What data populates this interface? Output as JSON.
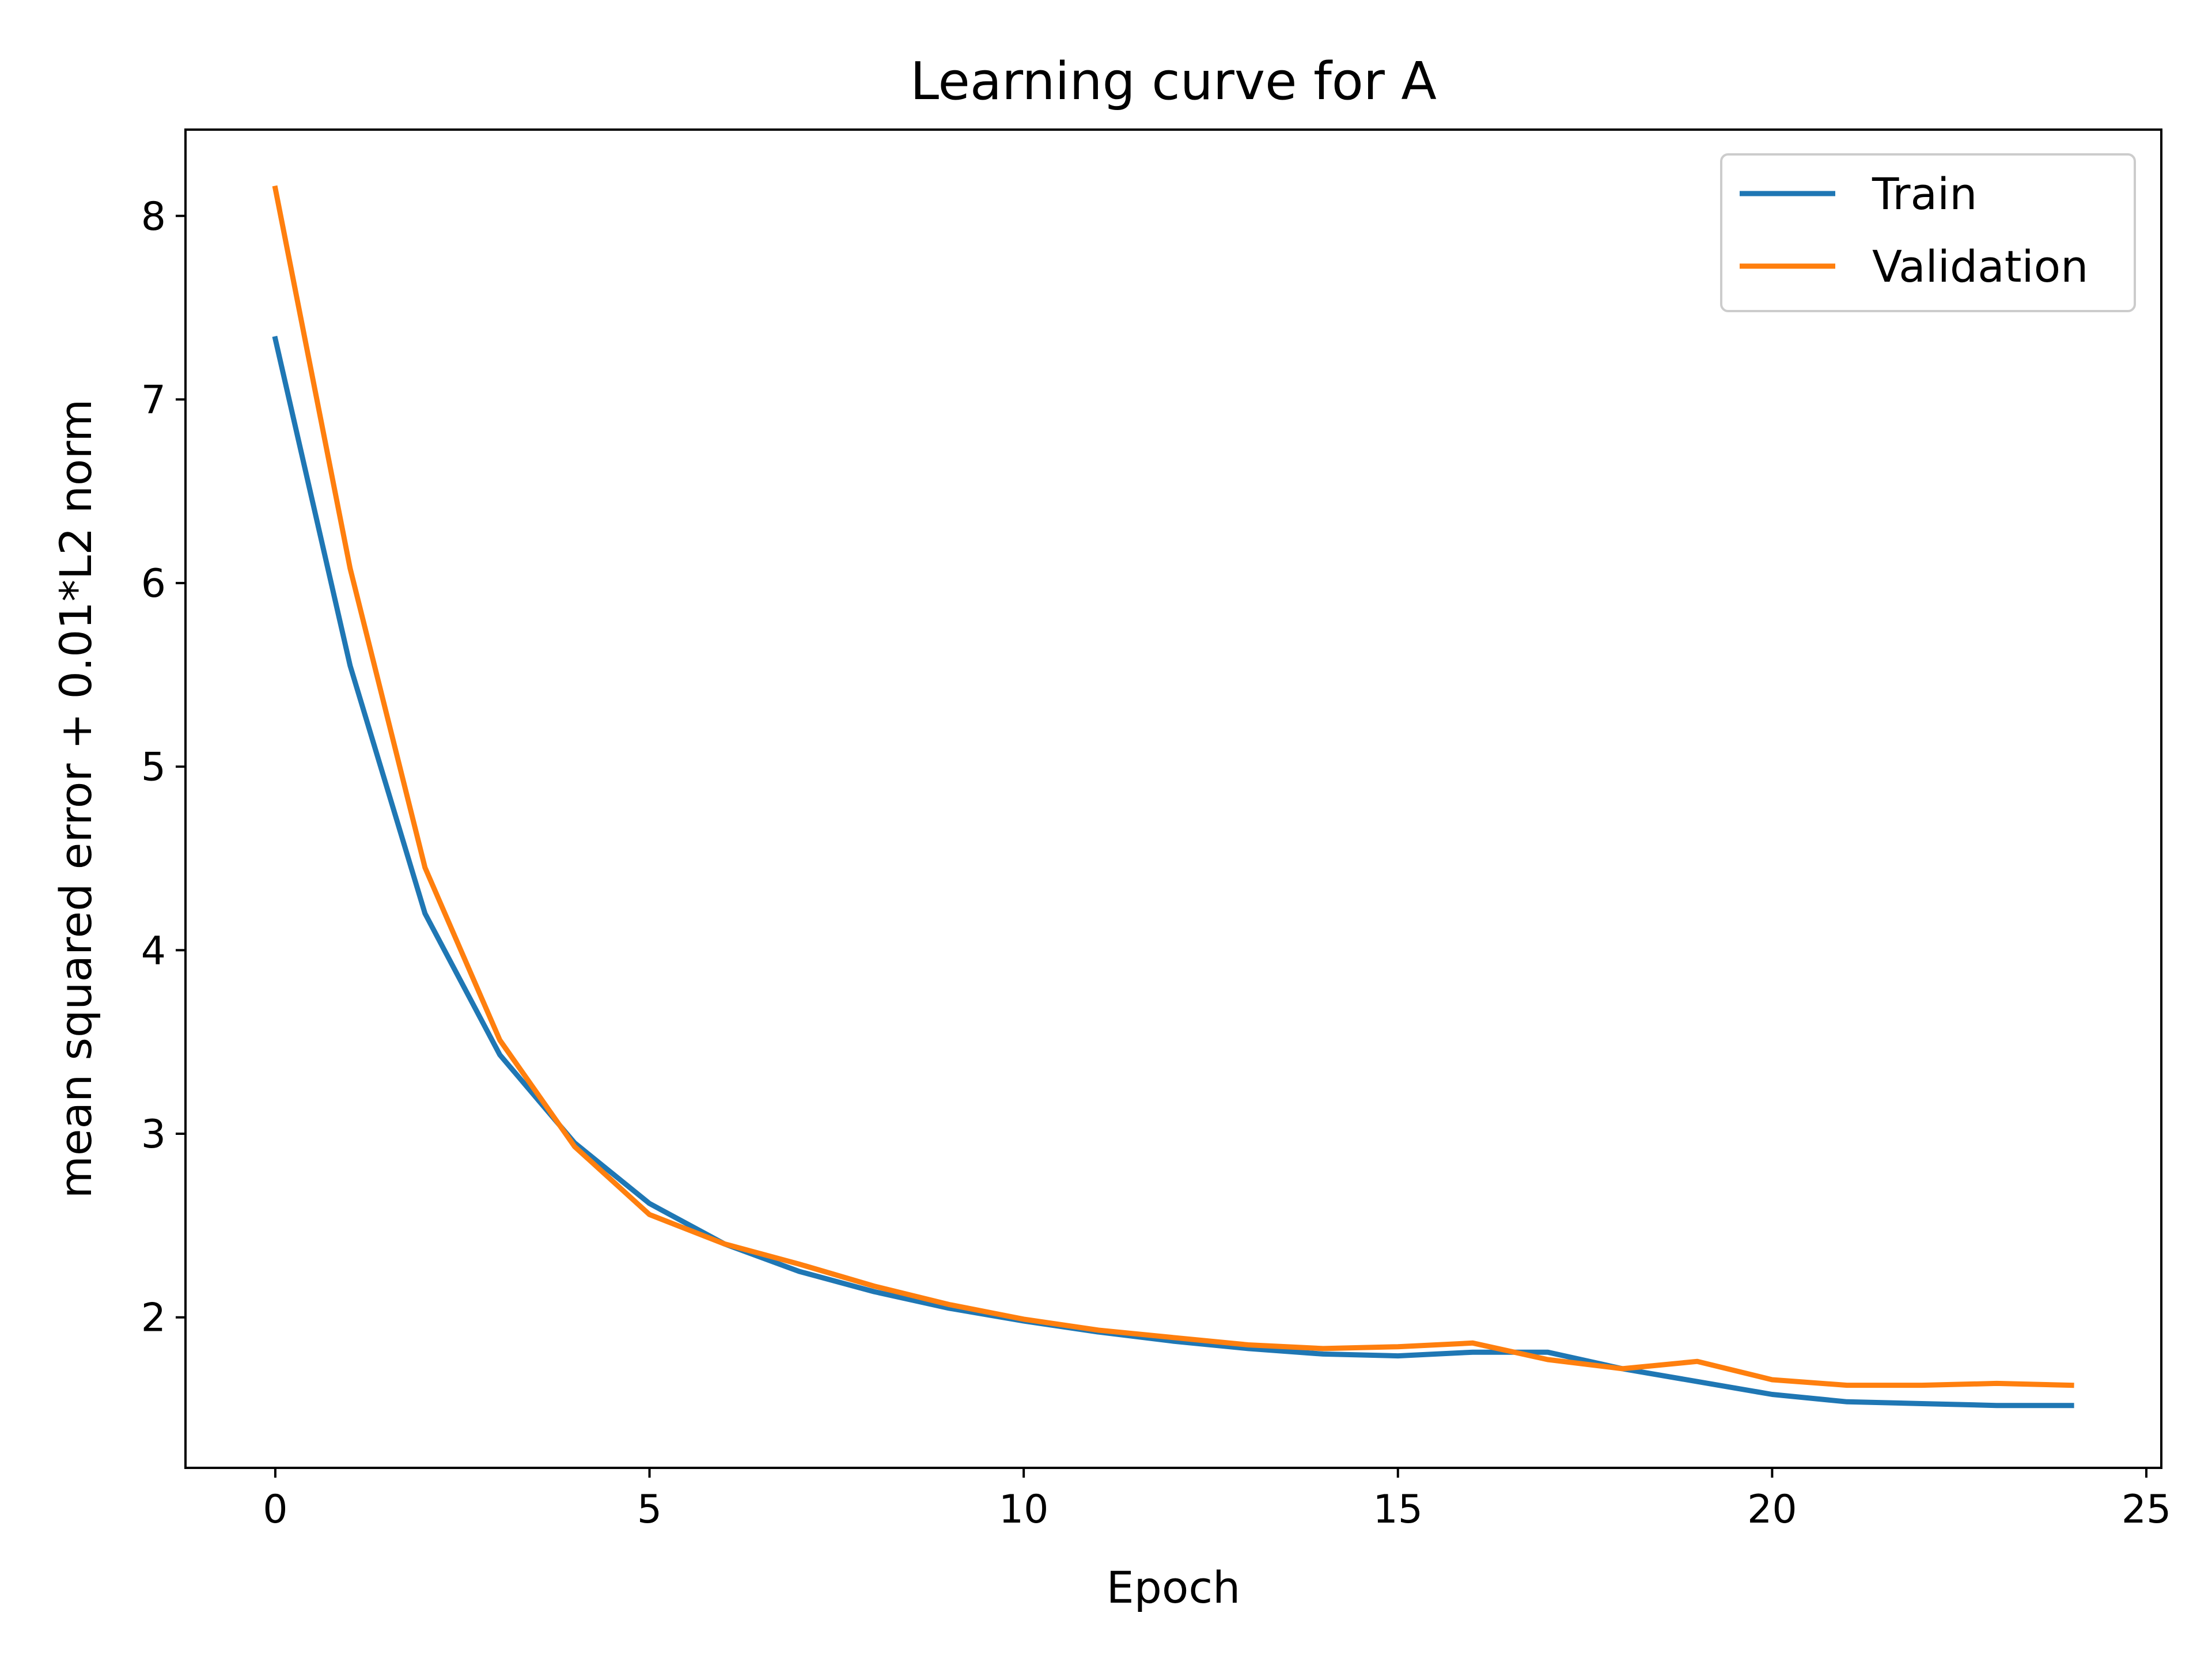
{
  "chart_data": {
    "type": "line",
    "title": "Learning curve for A",
    "xlabel": "Epoch",
    "ylabel": "mean squared error + 0.01*L2 norm",
    "xlim": [
      -1.2,
      25.2
    ],
    "ylim": [
      1.18,
      8.47
    ],
    "xticks": [
      0,
      5,
      10,
      15,
      20,
      25
    ],
    "yticks": [
      2,
      3,
      4,
      5,
      6,
      7,
      8
    ],
    "grid": false,
    "legend_position": "top-right",
    "x": [
      0,
      1,
      2,
      3,
      4,
      5,
      6,
      7,
      8,
      9,
      10,
      11,
      12,
      13,
      14,
      15,
      16,
      17,
      18,
      19,
      20,
      21,
      22,
      23,
      24
    ],
    "series": [
      {
        "name": "Train",
        "color": "#1f77b4",
        "values": [
          7.33,
          5.55,
          4.2,
          3.43,
          2.95,
          2.62,
          2.4,
          2.25,
          2.14,
          2.05,
          1.98,
          1.92,
          1.87,
          1.83,
          1.8,
          1.79,
          1.81,
          1.81,
          1.72,
          1.65,
          1.58,
          1.54,
          1.53,
          1.52,
          1.52
        ]
      },
      {
        "name": "Validation",
        "color": "#ff7f0e",
        "values": [
          8.15,
          6.08,
          4.45,
          3.51,
          2.93,
          2.56,
          2.4,
          2.29,
          2.17,
          2.07,
          1.99,
          1.93,
          1.89,
          1.85,
          1.83,
          1.84,
          1.86,
          1.77,
          1.72,
          1.76,
          1.66,
          1.63,
          1.63,
          1.64,
          1.63
        ]
      }
    ]
  }
}
